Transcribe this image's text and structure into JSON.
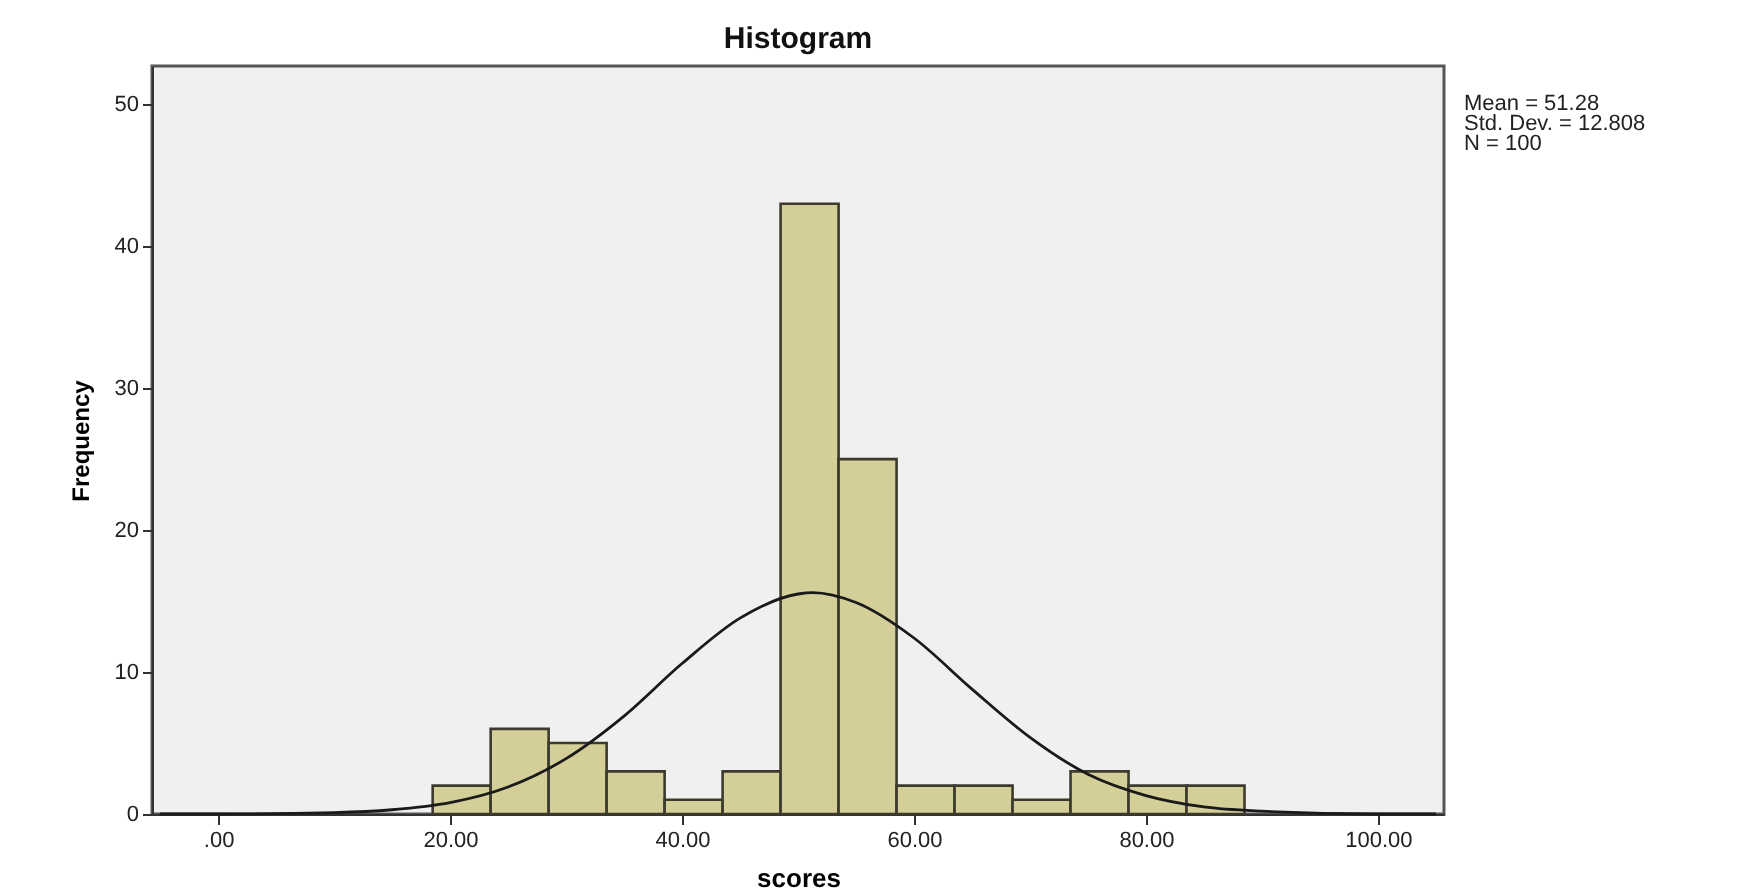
{
  "chart_data": {
    "type": "histogram",
    "title": "Histogram",
    "xlabel": "scores",
    "ylabel": "Frequency",
    "bins": [
      18.5,
      23.5,
      28.5,
      33.5,
      38.5,
      43.5,
      48.5,
      53.5,
      58.5,
      63.5,
      68.5,
      73.5,
      78.5,
      83.5,
      88.5
    ],
    "series": [
      {
        "color": "#d4cf98",
        "values": [
          2,
          6,
          5,
          3,
          1,
          3,
          43,
          25,
          2,
          2,
          1,
          3,
          2,
          2
        ]
      },
      {
        "type": "line",
        "color": "#1a1a1a",
        "x": [
          -5,
          0,
          10,
          15,
          20,
          25,
          30,
          35,
          40,
          45,
          50,
          51.28,
          55,
          60,
          65,
          70,
          75,
          80,
          85,
          90,
          100,
          105
        ],
        "values": [
          0,
          0,
          0.1,
          0.3,
          0.8,
          1.9,
          3.9,
          6.9,
          10.6,
          13.8,
          15.5,
          15.6,
          14.9,
          12.4,
          8.8,
          5.4,
          2.8,
          1.3,
          0.5,
          0.2,
          0,
          0
        ]
      }
    ],
    "xlim": [
      -5.7,
      105.7
    ],
    "xticks": [
      {
        "value": 0,
        "label": ".00"
      },
      {
        "value": 20,
        "label": "20.00"
      },
      {
        "value": 40,
        "label": "40.00"
      },
      {
        "value": 60,
        "label": "60.00"
      },
      {
        "value": 80,
        "label": "80.00"
      },
      {
        "value": 100,
        "label": "100.00"
      }
    ],
    "ylim": [
      0,
      52.7
    ],
    "yticks": [
      0,
      10,
      20,
      30,
      40,
      50
    ],
    "grid": false,
    "annotations": [
      "Mean = 51.28",
      "Std. Dev. = 12.808",
      "N = 100"
    ]
  }
}
